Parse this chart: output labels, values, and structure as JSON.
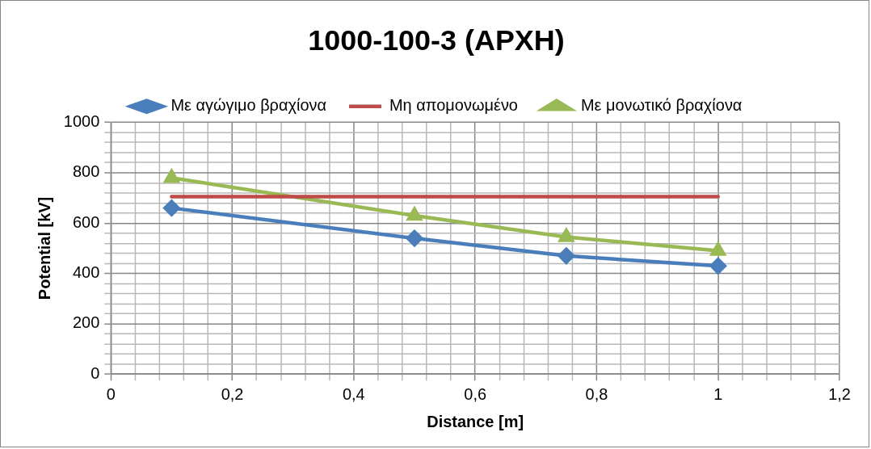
{
  "chart_data": {
    "type": "line",
    "title": "1000-100-3 (ΑΡΧΗ)",
    "xlabel": "Distance [m]",
    "ylabel": "Potential [kV]",
    "x": [
      0.1,
      0.5,
      0.75,
      1
    ],
    "series": [
      {
        "name": "Με αγώγιμο βραχίονα",
        "color": "#4a7ebb",
        "values": [
          660,
          540,
          470,
          430
        ],
        "marker": "diamond"
      },
      {
        "name": "Μη απομονωμένο",
        "color": "#be4b48",
        "x": [
          0.1,
          1
        ],
        "values": [
          705,
          705
        ],
        "marker": "none"
      },
      {
        "name": "Με μονωτικό βραχίονα",
        "color": "#98b954",
        "values": [
          780,
          630,
          545,
          490
        ],
        "marker": "triangle"
      }
    ],
    "xlim": [
      0,
      1.2
    ],
    "xticks": [
      0,
      {
        "value": 0.2,
        "label": "0,2"
      },
      {
        "value": 0.4,
        "label": "0,4"
      },
      {
        "value": 0.6,
        "label": "0,6"
      },
      {
        "value": 0.8,
        "label": "0,8"
      },
      1,
      {
        "value": 1.2,
        "label": "1,2"
      }
    ],
    "ylim": [
      0,
      1000
    ],
    "yticks": [
      0,
      200,
      400,
      600,
      800,
      1000
    ],
    "grid": true,
    "legend": "top",
    "line_style": "solid"
  }
}
